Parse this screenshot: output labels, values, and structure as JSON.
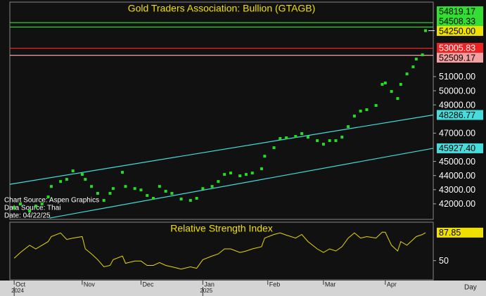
{
  "chart_data": [
    {
      "type": "scatter",
      "title": "Gold Traders Association: Bullion (GTAGB)",
      "x": [
        0,
        2,
        5,
        7,
        9,
        11,
        12,
        15,
        17,
        19,
        22,
        23,
        25,
        27,
        29,
        31,
        32,
        35,
        36,
        39,
        41,
        43,
        45,
        47,
        49,
        51,
        54,
        57,
        59,
        61,
        64,
        66,
        68,
        70,
        73,
        75,
        77,
        80,
        81,
        84,
        86,
        88,
        91,
        93,
        95,
        98,
        100,
        102,
        104,
        106,
        108,
        110,
        112,
        114,
        117,
        119,
        120,
        122,
        124,
        125,
        127,
        129,
        130,
        132,
        133
      ],
      "values": [
        41740,
        41990,
        41490,
        41840,
        41990,
        42490,
        43230,
        43580,
        43730,
        44330,
        44080,
        43730,
        43230,
        42740,
        42240,
        42740,
        43080,
        44230,
        43230,
        43080,
        42980,
        42590,
        42390,
        43230,
        42890,
        42740,
        42340,
        42240,
        42390,
        43080,
        43230,
        43580,
        44080,
        44180,
        43980,
        44080,
        44180,
        44480,
        45370,
        45970,
        46620,
        46670,
        46770,
        46970,
        46720,
        46470,
        46220,
        46470,
        46470,
        46720,
        47460,
        48210,
        48560,
        48660,
        48960,
        50450,
        50550,
        49950,
        49450,
        50450,
        51190,
        51690,
        52240,
        52540,
        54250
      ],
      "color": "#22dd22",
      "last_label": "54250.00",
      "xlim": [
        -1.4,
        135.5
      ],
      "ylim": [
        40900,
        56270
      ],
      "yticks": [
        {
          "value": 42000,
          "label": "42000.00"
        },
        {
          "value": 43000,
          "label": "43000.00"
        },
        {
          "value": 44000,
          "label": "44000.00"
        },
        {
          "value": 45000,
          "label": "45000.00"
        },
        {
          "value": 47000,
          "label": "47000.00"
        },
        {
          "value": 49000,
          "label": "49000.00"
        },
        {
          "value": 50000,
          "label": "50000.00"
        },
        {
          "value": 51000,
          "label": "51000.00"
        }
      ],
      "xticks": [
        {
          "value": 0,
          "label": "Oct"
        },
        {
          "value": 22,
          "label": "Nov"
        },
        {
          "value": 41,
          "label": "Dec"
        },
        {
          "value": 61,
          "label": "Jan"
        },
        {
          "value": 82,
          "label": "Feb"
        },
        {
          "value": 100,
          "label": "Mar"
        },
        {
          "value": 120,
          "label": "Apr"
        }
      ],
      "year_ticks": [
        {
          "value": 0,
          "label": "2024"
        },
        {
          "value": 61,
          "label": "2025"
        }
      ],
      "x_unit_label": "Day",
      "levels": [
        {
          "value": 54819.17,
          "color": "#33dd33"
        },
        {
          "value": 54508.33,
          "color": "#33dd33"
        },
        {
          "value": 53005.83,
          "color": "#ee2222"
        },
        {
          "value": 52509.17,
          "color": "#f4a0a0"
        }
      ],
      "trendlines": [
        {
          "start": [
            -1.4,
            43380
          ],
          "end": [
            135.5,
            48286.77
          ],
          "color": "#44dddd"
        },
        {
          "start": [
            11.4,
            40990
          ],
          "end": [
            135.5,
            {
              "value": 45927.4,
              "label": "45927.40"
            }
          ],
          "color": "#44dddd"
        }
      ],
      "notes": [
        "Chart Source: Aspen Graphics",
        "Data Source: Thai",
        "Date: 04/22/25"
      ]
    },
    {
      "type": "line",
      "title": "Relative Strength Index",
      "values": [
        53.3,
        61,
        70.8,
        65.9,
        70.8,
        75.7,
        82.5,
        87.4,
        78.6,
        80.5,
        82.5,
        65.9,
        59.1,
        51.3,
        41.6,
        43.5,
        51.3,
        56.2,
        46.4,
        49.4,
        49.4,
        43.5,
        43.5,
        47.4,
        43.5,
        41.6,
        38.6,
        41.6,
        39.6,
        51.3,
        56.2,
        59.1,
        65.9,
        65.9,
        61,
        63,
        65.9,
        68.9,
        80.5,
        85.4,
        87.4,
        84.5,
        80.5,
        85.4,
        75.7,
        65.9,
        61,
        65.9,
        63,
        68.9,
        80.5,
        87.4,
        80.5,
        82.5,
        80.5,
        88.4,
        88.4,
        70.8,
        63,
        75.7,
        70.8,
        78.6,
        82.5,
        85.4,
        87.85
      ],
      "color": "#e8d800",
      "ylim": [
        24,
        102
      ],
      "yticks": [
        50
      ]
    }
  ]
}
